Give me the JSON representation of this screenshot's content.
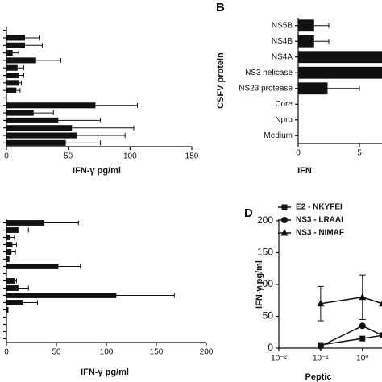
{
  "chart_data": [
    {
      "type": "hbar",
      "xlabel": "IFN-γ pg/ml",
      "categories": [
        null,
        null,
        null,
        null,
        null,
        null,
        null,
        null,
        null,
        null,
        null,
        null,
        null,
        null,
        null,
        null
      ],
      "values": [
        0,
        15,
        15,
        5,
        24,
        9,
        10,
        10,
        8,
        0,
        72,
        22,
        42,
        53,
        57,
        48
      ],
      "errors": [
        null,
        12,
        14,
        5,
        20,
        5,
        4,
        2,
        3,
        null,
        34,
        16,
        34,
        50,
        39,
        28
      ],
      "color": "#111111",
      "xlim": [
        0,
        150
      ],
      "xticks": [
        0,
        50,
        100,
        150
      ]
    },
    {
      "type": "hbar",
      "title": "B",
      "ylabel": "CSFV protein",
      "xlabel": "IFN",
      "categories": [
        "NS5B",
        "NS4B",
        "NS4A",
        "NS3 helicase",
        "NS23 protease",
        "Core",
        "Npro",
        "Medium"
      ],
      "values": [
        1.3,
        1.3,
        10,
        10,
        2.4,
        0,
        0,
        0
      ],
      "errors": [
        1.2,
        1.2,
        null,
        null,
        2.6,
        null,
        null,
        null
      ],
      "color": "#111111",
      "xlim": [
        0,
        10
      ],
      "xticks": [
        0,
        5
      ]
    },
    {
      "type": "hbar",
      "xlabel": "IFN-γ pg/ml",
      "categories": [
        null,
        null,
        null,
        null,
        null,
        null,
        null,
        null,
        null,
        null,
        null,
        null,
        null,
        null,
        null,
        null,
        null
      ],
      "values": [
        38,
        12,
        4,
        6,
        5,
        3,
        52,
        0,
        8,
        12,
        110,
        17,
        2,
        0,
        0,
        0,
        0
      ],
      "errors": [
        34,
        10,
        4,
        4,
        4,
        null,
        22,
        null,
        2,
        10,
        58,
        14,
        null,
        null,
        null,
        null,
        null
      ],
      "color": "#111111",
      "xlim": [
        0,
        200
      ],
      "xticks": [
        0,
        50,
        100,
        150,
        200
      ]
    },
    {
      "type": "line",
      "title": "D",
      "ylabel": "IFN-γ pg/ml",
      "xlabel": "Peptic",
      "log_x": true,
      "x": [
        0.1,
        1,
        3
      ],
      "series": [
        {
          "name": "E2 - NKYFEI",
          "color": "#111111",
          "marker": "square",
          "values": [
            5,
            15,
            20
          ]
        },
        {
          "name": "NS3 - LRAAI",
          "color": "#111111",
          "marker": "circle",
          "values": [
            3,
            35,
            20
          ]
        },
        {
          "name": "NS3 - NIMAF",
          "color": "#111111",
          "marker": "triangle",
          "values": [
            70,
            80,
            70
          ],
          "errors": [
            27,
            35,
            null
          ]
        }
      ],
      "xlim": [
        0.01,
        5
      ],
      "xticks": [
        {
          "value": 0.01,
          "label": "10⁻²"
        },
        {
          "value": 0.1,
          "label": "10⁻¹"
        },
        {
          "value": 1,
          "label": "10⁰"
        }
      ],
      "ylim": [
        0,
        200
      ],
      "yticks": [
        0,
        50,
        100,
        150,
        200
      ]
    }
  ]
}
